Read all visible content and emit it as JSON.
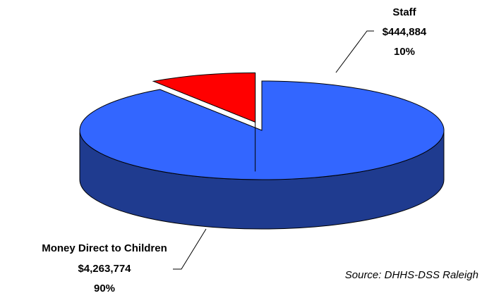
{
  "chart_data": {
    "type": "pie",
    "title": "",
    "series": [
      {
        "name": "Money Direct to Children",
        "value": 4263774,
        "value_label": "$4,263,774",
        "percent": 90,
        "percent_label": "90%",
        "color_top": "#3366ff",
        "color_side": "#1f3b8f",
        "exploded": false
      },
      {
        "name": "Staff",
        "value": 444884,
        "value_label": "$444,884",
        "percent": 10,
        "percent_label": "10%",
        "color_top": "#ff0000",
        "color_side": "#800000",
        "exploded": true
      }
    ],
    "source": "Source: DHHS-DSS Raleigh",
    "style": "3d-exploded"
  }
}
